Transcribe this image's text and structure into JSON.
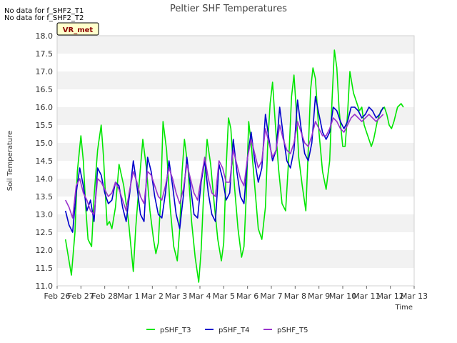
{
  "chart_data": {
    "type": "line",
    "title": "Peltier SHF Temperatures",
    "xlabel": "Time",
    "ylabel": "Soil Temperature",
    "ylim": [
      11.0,
      18.0
    ],
    "yticks": [
      "11.0",
      "11.5",
      "12.0",
      "12.5",
      "13.0",
      "13.5",
      "14.0",
      "14.5",
      "15.0",
      "15.5",
      "16.0",
      "16.5",
      "17.0",
      "17.5",
      "18.0"
    ],
    "xlim": [
      0,
      15
    ],
    "xticks": [
      "Feb 26",
      "Feb 27",
      "Feb 28",
      "Mar 1",
      "Mar 2",
      "Mar 3",
      "Mar 4",
      "Mar 5",
      "Mar 6",
      "Mar 7",
      "Mar 8",
      "Mar 9",
      "Mar 10",
      "Mar 11",
      "Mar 12",
      "Mar 13"
    ],
    "grid": "horizontal bands",
    "legend": "bottom",
    "notes": [
      "No data for f_SHF2_T1",
      "No data for f_SHF2_T2"
    ],
    "badge": "VR_met",
    "series": [
      {
        "name": "pSHF_T3",
        "color": "#00e600",
        "x": [
          0.35,
          0.45,
          0.6,
          0.75,
          0.85,
          1.0,
          1.1,
          1.2,
          1.3,
          1.45,
          1.55,
          1.7,
          1.85,
          1.95,
          2.05,
          2.1,
          2.2,
          2.3,
          2.45,
          2.6,
          2.8,
          3.0,
          3.2,
          3.3,
          3.45,
          3.6,
          3.75,
          3.9,
          4.05,
          4.15,
          4.25,
          4.35,
          4.45,
          4.6,
          4.75,
          4.9,
          5.05,
          5.15,
          5.25,
          5.35,
          5.5,
          5.65,
          5.8,
          5.95,
          6.05,
          6.15,
          6.3,
          6.45,
          6.6,
          6.75,
          6.9,
          7.0,
          7.1,
          7.2,
          7.3,
          7.45,
          7.6,
          7.75,
          7.85,
          7.95,
          8.05,
          8.15,
          8.3,
          8.45,
          8.6,
          8.75,
          8.85,
          8.95,
          9.05,
          9.15,
          9.3,
          9.45,
          9.6,
          9.75,
          9.85,
          9.95,
          10.05,
          10.15,
          10.3,
          10.45,
          10.55,
          10.65,
          10.75,
          10.85,
          11.0,
          11.15,
          11.3,
          11.45,
          11.55,
          11.65,
          11.75,
          11.85,
          12.0,
          12.1,
          12.2,
          12.3,
          12.45,
          12.6,
          12.7,
          12.8,
          12.9,
          13.0,
          13.1,
          13.2,
          13.3,
          13.45,
          13.6,
          13.75,
          13.85,
          13.95,
          14.05,
          14.15,
          14.3,
          14.45,
          14.55
        ],
        "y": [
          12.3,
          11.9,
          11.3,
          12.5,
          14.2,
          15.2,
          14.5,
          13.2,
          12.3,
          12.1,
          13.5,
          14.8,
          15.5,
          14.6,
          13.3,
          12.7,
          12.8,
          12.6,
          13.2,
          14.4,
          13.8,
          12.8,
          11.4,
          12.6,
          13.9,
          15.1,
          14.3,
          13.1,
          12.3,
          11.9,
          12.2,
          13.4,
          15.6,
          14.8,
          13.2,
          12.1,
          11.7,
          12.6,
          14.2,
          15.1,
          14.3,
          12.8,
          11.8,
          11.1,
          12.0,
          13.5,
          15.1,
          14.4,
          13.3,
          12.3,
          11.7,
          12.2,
          14.3,
          15.7,
          15.4,
          13.8,
          12.6,
          11.8,
          12.1,
          13.6,
          15.6,
          15.0,
          13.8,
          12.6,
          12.3,
          13.2,
          15.0,
          16.1,
          16.7,
          15.7,
          14.3,
          13.3,
          13.1,
          14.8,
          16.3,
          16.9,
          15.9,
          14.6,
          13.8,
          13.1,
          14.8,
          16.5,
          17.1,
          16.8,
          15.3,
          14.2,
          13.7,
          14.5,
          16.2,
          17.6,
          17.1,
          15.9,
          14.9,
          14.9,
          15.8,
          17.0,
          16.4,
          16.1,
          15.9,
          16.0,
          15.5,
          15.3,
          15.1,
          14.9,
          15.1,
          15.6,
          15.9,
          16.0,
          15.8,
          15.5,
          15.4,
          15.6,
          16.0,
          16.1,
          16.0
        ]
      },
      {
        "name": "pSHF_T4",
        "color": "#0000cc",
        "x": [
          0.35,
          0.5,
          0.65,
          0.8,
          0.95,
          1.1,
          1.25,
          1.4,
          1.55,
          1.7,
          1.85,
          2.0,
          2.15,
          2.3,
          2.45,
          2.6,
          2.75,
          2.9,
          3.05,
          3.2,
          3.35,
          3.5,
          3.65,
          3.8,
          3.95,
          4.1,
          4.25,
          4.4,
          4.55,
          4.7,
          4.85,
          5.0,
          5.15,
          5.3,
          5.45,
          5.6,
          5.75,
          5.9,
          6.05,
          6.2,
          6.35,
          6.5,
          6.65,
          6.8,
          6.95,
          7.1,
          7.25,
          7.4,
          7.55,
          7.7,
          7.85,
          8.0,
          8.15,
          8.3,
          8.45,
          8.6,
          8.75,
          8.9,
          9.05,
          9.2,
          9.35,
          9.5,
          9.65,
          9.8,
          9.95,
          10.1,
          10.25,
          10.4,
          10.55,
          10.7,
          10.85,
          11.0,
          11.15,
          11.3,
          11.45,
          11.6,
          11.75,
          11.9,
          12.05,
          12.2,
          12.35,
          12.5,
          12.65,
          12.8,
          12.95,
          13.1,
          13.25,
          13.4,
          13.55,
          13.7
        ],
        "y": [
          13.1,
          12.7,
          12.5,
          13.6,
          14.3,
          13.8,
          13.1,
          13.4,
          12.8,
          14.3,
          14.1,
          13.6,
          13.3,
          13.4,
          13.9,
          13.8,
          13.2,
          12.8,
          13.6,
          14.5,
          13.8,
          13.0,
          12.8,
          14.6,
          14.2,
          13.5,
          13.0,
          12.9,
          13.6,
          14.5,
          13.8,
          13.0,
          12.6,
          13.5,
          14.6,
          13.8,
          13.0,
          12.9,
          13.9,
          14.5,
          13.6,
          13.0,
          12.8,
          14.4,
          14.0,
          13.4,
          13.6,
          15.1,
          14.2,
          13.5,
          13.3,
          14.6,
          15.3,
          14.5,
          13.9,
          14.3,
          15.8,
          15.1,
          14.5,
          14.8,
          16.0,
          15.2,
          14.5,
          14.3,
          14.8,
          16.2,
          15.4,
          14.7,
          14.5,
          15.0,
          16.3,
          15.8,
          15.3,
          15.1,
          15.3,
          16.0,
          15.9,
          15.6,
          15.4,
          15.6,
          16.0,
          16.0,
          15.9,
          15.7,
          15.8,
          16.0,
          15.9,
          15.7,
          15.8,
          16.0
        ]
      },
      {
        "name": "pSHF_T5",
        "color": "#9933cc",
        "x": [
          0.35,
          0.5,
          0.65,
          0.8,
          0.95,
          1.1,
          1.25,
          1.4,
          1.55,
          1.7,
          1.85,
          2.0,
          2.15,
          2.3,
          2.45,
          2.6,
          2.75,
          2.9,
          3.05,
          3.2,
          3.35,
          3.5,
          3.65,
          3.8,
          3.95,
          4.1,
          4.25,
          4.4,
          4.55,
          4.7,
          4.85,
          5.0,
          5.15,
          5.3,
          5.45,
          5.6,
          5.75,
          5.9,
          6.05,
          6.2,
          6.35,
          6.5,
          6.65,
          6.8,
          6.95,
          7.1,
          7.25,
          7.4,
          7.55,
          7.7,
          7.85,
          8.0,
          8.15,
          8.3,
          8.45,
          8.6,
          8.75,
          8.9,
          9.05,
          9.2,
          9.35,
          9.5,
          9.65,
          9.8,
          9.95,
          10.1,
          10.25,
          10.4,
          10.55,
          10.7,
          10.85,
          11.0,
          11.15,
          11.3,
          11.45,
          11.6,
          11.75,
          11.9,
          12.05,
          12.2,
          12.35,
          12.5,
          12.65,
          12.8,
          12.95,
          13.1,
          13.25,
          13.4,
          13.55,
          13.7
        ],
        "y": [
          13.4,
          13.2,
          12.9,
          13.8,
          14.0,
          13.6,
          13.4,
          13.1,
          13.0,
          14.0,
          13.9,
          13.7,
          13.5,
          13.6,
          13.9,
          13.7,
          13.4,
          13.1,
          13.7,
          14.2,
          13.9,
          13.5,
          13.3,
          14.2,
          14.1,
          13.8,
          13.5,
          13.4,
          13.8,
          14.3,
          14.0,
          13.6,
          13.3,
          13.7,
          14.4,
          14.0,
          13.6,
          13.4,
          14.0,
          14.6,
          14.0,
          13.6,
          13.5,
          14.5,
          14.3,
          13.9,
          13.9,
          14.8,
          14.4,
          14.0,
          13.8,
          14.6,
          15.1,
          14.7,
          14.3,
          14.5,
          15.4,
          15.0,
          14.6,
          14.8,
          15.5,
          15.1,
          14.8,
          14.7,
          15.0,
          15.6,
          15.3,
          15.0,
          14.9,
          15.2,
          15.6,
          15.4,
          15.2,
          15.2,
          15.4,
          15.7,
          15.6,
          15.4,
          15.3,
          15.5,
          15.7,
          15.8,
          15.7,
          15.6,
          15.7,
          15.8,
          15.7,
          15.6,
          15.7,
          15.8
        ]
      }
    ]
  }
}
